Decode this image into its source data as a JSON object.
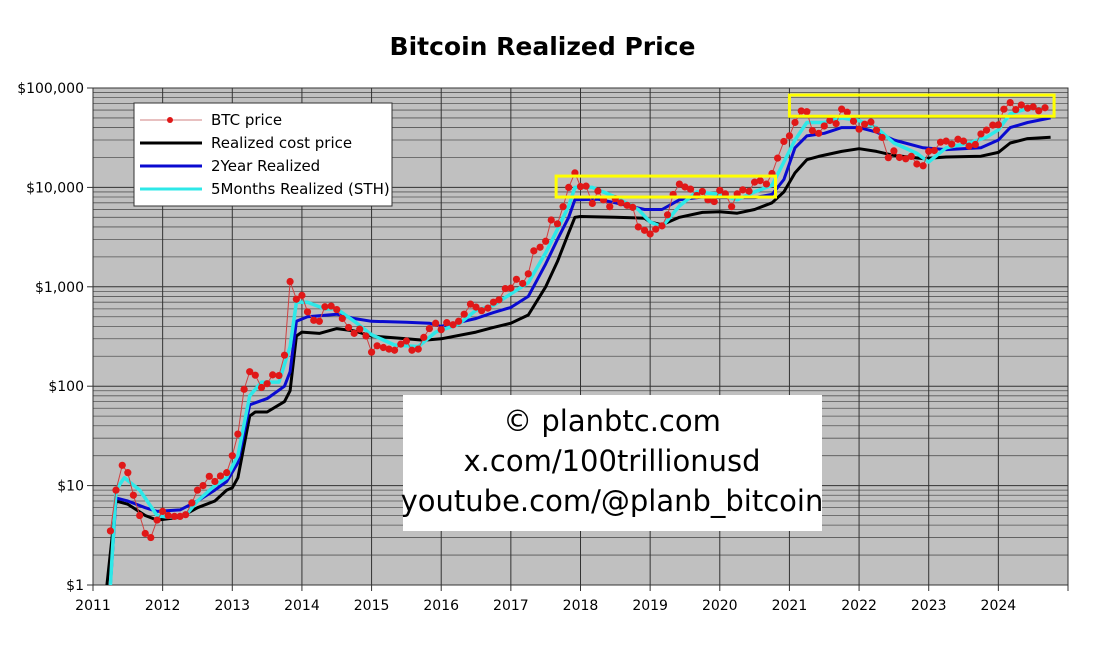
{
  "chart_data": {
    "type": "line",
    "title": "Bitcoin Realized Price",
    "xlabel": "",
    "ylabel": "",
    "xlim": [
      2011,
      2025
    ],
    "ylim": [
      1,
      100000
    ],
    "y_scale": "log",
    "grid": true,
    "legend_placement": "top-left",
    "x_ticks": [
      "2011",
      "2012",
      "2013",
      "2014",
      "2015",
      "2016",
      "2017",
      "2018",
      "2019",
      "2020",
      "2021",
      "2022",
      "2023",
      "2024"
    ],
    "y_ticks": [
      {
        "value": 1,
        "label": "$1"
      },
      {
        "value": 10,
        "label": "$10"
      },
      {
        "value": 100,
        "label": "$100"
      },
      {
        "value": 1000,
        "label": "$1,000"
      },
      {
        "value": 10000,
        "label": "$10,000"
      },
      {
        "value": 100000,
        "label": "$100,000"
      }
    ],
    "background_color": "#c0c0c0",
    "series": [
      {
        "name": "BTC price",
        "color": "#e01818",
        "style": "markers-thin-line",
        "x": [
          2011.25,
          2011.33,
          2011.42,
          2011.5,
          2011.58,
          2011.67,
          2011.75,
          2011.83,
          2011.92,
          2012.0,
          2012.08,
          2012.17,
          2012.25,
          2012.33,
          2012.42,
          2012.5,
          2012.58,
          2012.67,
          2012.75,
          2012.83,
          2012.92,
          2013.0,
          2013.08,
          2013.17,
          2013.25,
          2013.33,
          2013.42,
          2013.5,
          2013.58,
          2013.67,
          2013.75,
          2013.83,
          2013.92,
          2014.0,
          2014.08,
          2014.17,
          2014.25,
          2014.33,
          2014.42,
          2014.5,
          2014.58,
          2014.67,
          2014.75,
          2014.83,
          2014.92,
          2015.0,
          2015.08,
          2015.17,
          2015.25,
          2015.33,
          2015.42,
          2015.5,
          2015.58,
          2015.67,
          2015.75,
          2015.83,
          2015.92,
          2016.0,
          2016.08,
          2016.17,
          2016.25,
          2016.33,
          2016.42,
          2016.5,
          2016.58,
          2016.67,
          2016.75,
          2016.83,
          2016.92,
          2017.0,
          2017.08,
          2017.17,
          2017.25,
          2017.33,
          2017.42,
          2017.5,
          2017.58,
          2017.67,
          2017.75,
          2017.83,
          2017.92,
          2018.0,
          2018.08,
          2018.17,
          2018.25,
          2018.33,
          2018.42,
          2018.5,
          2018.58,
          2018.67,
          2018.75,
          2018.83,
          2018.92,
          2019.0,
          2019.08,
          2019.17,
          2019.25,
          2019.33,
          2019.42,
          2019.5,
          2019.58,
          2019.67,
          2019.75,
          2019.83,
          2019.92,
          2020.0,
          2020.08,
          2020.17,
          2020.25,
          2020.33,
          2020.42,
          2020.5,
          2020.58,
          2020.67,
          2020.75,
          2020.83,
          2020.92,
          2021.0,
          2021.08,
          2021.17,
          2021.25,
          2021.33,
          2021.42,
          2021.5,
          2021.58,
          2021.67,
          2021.75,
          2021.83,
          2021.92,
          2022.0,
          2022.08,
          2022.17,
          2022.25,
          2022.33,
          2022.42,
          2022.5,
          2022.58,
          2022.67,
          2022.75,
          2022.83,
          2022.92,
          2023.0,
          2023.08,
          2023.17,
          2023.25,
          2023.33,
          2023.42,
          2023.5,
          2023.58,
          2023.67,
          2023.75,
          2023.83,
          2023.92,
          2024.0,
          2024.08,
          2024.17,
          2024.25,
          2024.33,
          2024.42,
          2024.5,
          2024.58,
          2024.67
        ],
        "y": [
          3.5,
          9,
          16,
          13.5,
          8,
          5,
          3.3,
          3,
          4.5,
          5.5,
          5,
          4.9,
          4.9,
          5.1,
          6.7,
          9,
          10,
          12.4,
          11,
          12.5,
          13.5,
          20,
          33,
          93,
          140,
          129,
          97,
          106,
          130,
          128,
          205,
          1130,
          750,
          820,
          560,
          460,
          450,
          630,
          640,
          590,
          480,
          390,
          340,
          375,
          320,
          220,
          255,
          245,
          236,
          230,
          265,
          285,
          230,
          236,
          310,
          380,
          430,
          370,
          436,
          415,
          450,
          530,
          670,
          625,
          575,
          610,
          700,
          740,
          960,
          970,
          1190,
          1080,
          1350,
          2300,
          2500,
          2870,
          4700,
          4300,
          6400,
          10000,
          14000,
          10200,
          10300,
          6900,
          9200,
          7500,
          6400,
          7700,
          7000,
          6600,
          6300,
          4000,
          3700,
          3400,
          3800,
          4100,
          5300,
          8500,
          10800,
          10100,
          9600,
          8300,
          9100,
          7500,
          7200,
          9350,
          8600,
          6400,
          8600,
          9450,
          9150,
          11300,
          11700,
          10800,
          13800,
          19700,
          29000,
          33000,
          45000,
          58800,
          57800,
          37300,
          35000,
          41500,
          47100,
          43800,
          61300,
          57000,
          46300,
          38500,
          43200,
          45500,
          37700,
          31800,
          19900,
          23300,
          20000,
          19400,
          20500,
          17200,
          16500,
          23100,
          23500,
          28500,
          29200,
          27200,
          30500,
          29200,
          26000,
          27000,
          34500,
          37700,
          42300,
          42600,
          61200,
          71300,
          60700,
          67500,
          62700,
          64600,
          59000,
          63300
        ]
      },
      {
        "name": "Realized cost price",
        "color": "#000000",
        "x": [
          2011.2,
          2011.33,
          2011.5,
          2011.75,
          2011.92,
          2012.25,
          2012.5,
          2012.75,
          2012.92,
          2013.0,
          2013.08,
          2013.25,
          2013.33,
          2013.5,
          2013.75,
          2013.83,
          2013.92,
          2014.0,
          2014.25,
          2014.5,
          2014.75,
          2015.0,
          2015.5,
          2015.75,
          2016.0,
          2016.5,
          2016.75,
          2017.0,
          2017.25,
          2017.5,
          2017.67,
          2017.83,
          2017.92,
          2018.0,
          2018.5,
          2018.92,
          2019.0,
          2019.17,
          2019.42,
          2019.75,
          2020.0,
          2020.25,
          2020.5,
          2020.75,
          2020.92,
          2021.08,
          2021.25,
          2021.42,
          2021.75,
          2022.0,
          2022.25,
          2022.5,
          2022.92,
          2023.25,
          2023.75,
          2024.0,
          2024.17,
          2024.42,
          2024.75
        ],
        "y": [
          1,
          7,
          6.5,
          5,
          4.5,
          4.8,
          6,
          7,
          9,
          9.5,
          12,
          50,
          55,
          55,
          70,
          90,
          320,
          350,
          340,
          380,
          360,
          320,
          300,
          290,
          300,
          350,
          390,
          430,
          520,
          1000,
          1800,
          3500,
          5000,
          5100,
          5000,
          4900,
          4500,
          4200,
          5000,
          5600,
          5700,
          5500,
          6000,
          7000,
          9000,
          14000,
          19000,
          20500,
          23000,
          24500,
          23000,
          21000,
          19500,
          20200,
          20600,
          22500,
          28000,
          31000,
          32000
        ]
      },
      {
        "name": "2Year Realized",
        "color": "#0a0ad0",
        "x": [
          2011.25,
          2011.33,
          2011.5,
          2011.75,
          2011.92,
          2012.25,
          2012.5,
          2012.75,
          2012.92,
          2013.08,
          2013.25,
          2013.5,
          2013.75,
          2013.83,
          2013.92,
          2014.08,
          2014.5,
          2014.75,
          2015.0,
          2015.5,
          2015.83,
          2016.0,
          2016.5,
          2016.75,
          2017.0,
          2017.25,
          2017.5,
          2017.67,
          2017.83,
          2017.92,
          2018.25,
          2018.5,
          2018.92,
          2019.17,
          2019.42,
          2019.75,
          2020.0,
          2020.5,
          2020.75,
          2020.92,
          2021.08,
          2021.25,
          2021.5,
          2021.75,
          2022.0,
          2022.25,
          2022.5,
          2022.92,
          2023.25,
          2023.75,
          2024.0,
          2024.17,
          2024.42,
          2024.75
        ],
        "y": [
          1,
          7.5,
          7,
          6,
          5.5,
          5.7,
          7,
          9,
          11,
          17,
          65,
          75,
          100,
          140,
          450,
          500,
          530,
          480,
          450,
          440,
          430,
          400,
          480,
          550,
          620,
          800,
          1700,
          3000,
          5000,
          7500,
          7600,
          7000,
          6000,
          6000,
          7500,
          8000,
          7900,
          7900,
          8500,
          12000,
          25000,
          33000,
          35000,
          40000,
          40000,
          36000,
          30000,
          25000,
          24000,
          25000,
          30000,
          40000,
          45000,
          50000
        ]
      },
      {
        "name": "5Months Realized (STH)",
        "color": "#2ee8e8",
        "x": [
          2011.25,
          2011.33,
          2011.45,
          2011.67,
          2011.92,
          2012.08,
          2012.33,
          2012.5,
          2012.75,
          2012.92,
          2013.08,
          2013.25,
          2013.42,
          2013.67,
          2013.83,
          2013.92,
          2014.08,
          2014.33,
          2014.5,
          2014.75,
          2015.0,
          2015.33,
          2015.67,
          2015.92,
          2016.25,
          2016.5,
          2016.75,
          2017.0,
          2017.25,
          2017.5,
          2017.67,
          2017.83,
          2017.92,
          2018.17,
          2018.5,
          2018.83,
          2019.0,
          2019.17,
          2019.42,
          2019.67,
          2020.0,
          2020.25,
          2020.5,
          2020.75,
          2020.92,
          2021.08,
          2021.25,
          2021.5,
          2021.75,
          2022.0,
          2022.25,
          2022.5,
          2022.83,
          2023.0,
          2023.25,
          2023.58,
          2023.83,
          2024.0,
          2024.17,
          2024.42,
          2024.67
        ],
        "y": [
          1,
          9,
          12,
          9,
          5,
          4.8,
          5,
          7,
          10,
          12,
          20,
          80,
          110,
          110,
          250,
          700,
          700,
          600,
          600,
          450,
          330,
          260,
          250,
          350,
          420,
          580,
          650,
          850,
          1100,
          2200,
          3800,
          6500,
          10000,
          10000,
          8000,
          6000,
          4500,
          4000,
          6500,
          9000,
          8500,
          7500,
          9000,
          10500,
          18000,
          30000,
          45000,
          45000,
          50000,
          47000,
          40000,
          28000,
          22000,
          18000,
          25000,
          28000,
          32000,
          38000,
          55000,
          62000,
          62000
        ]
      }
    ],
    "annotations": [
      {
        "type": "rectangle",
        "color": "#ffff00",
        "x": [
          2017.65,
          2020.8
        ],
        "y": [
          8000,
          13000
        ]
      },
      {
        "type": "rectangle",
        "color": "#ffff00",
        "x": [
          2021.0,
          2024.8
        ],
        "y": [
          52000,
          85000
        ]
      }
    ]
  },
  "watermark": {
    "line1": "© planbtc.com",
    "line2": "x.com/100trillionusd",
    "line3": "youtube.com/@planb_bitcoin"
  }
}
